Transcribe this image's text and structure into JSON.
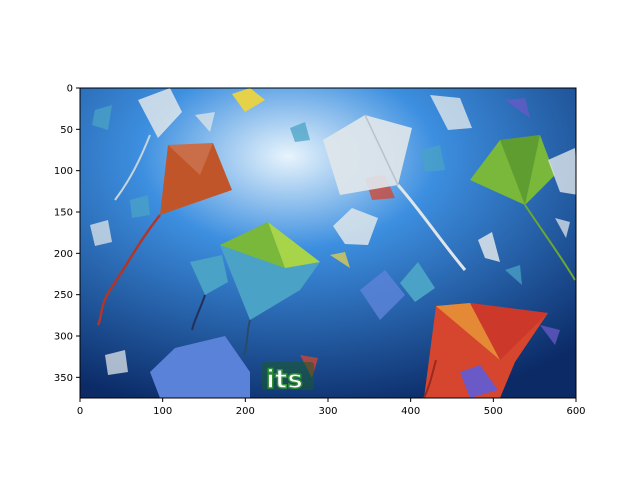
{
  "figure": {
    "type": "image-display-axes",
    "image": {
      "description_icon": "kites-sky-image",
      "overlay_text": "its",
      "palette": {
        "sky_center": "#e8f4fc",
        "sky_mid": "#3d8fe0",
        "sky_edge": "#0b2a66",
        "kite_orange": "#c0552a",
        "kite_red": "#d6452e",
        "kite_green": "#79b83a",
        "kite_teal": "#4aa3c6",
        "kite_white": "#dfe6ea",
        "kite_purple": "#6a5ac8",
        "kite_blue": "#5a82d8",
        "kite_yellow": "#e6d24a",
        "text_green": "#2f8f3a"
      }
    },
    "x_axis": {
      "range": [
        0,
        600
      ],
      "ticks": [
        "0",
        "100",
        "200",
        "300",
        "400",
        "500",
        "600"
      ]
    },
    "y_axis": {
      "range": [
        0,
        375
      ],
      "inverted": true,
      "ticks": [
        "0",
        "50",
        "100",
        "150",
        "200",
        "250",
        "300",
        "350"
      ]
    }
  }
}
